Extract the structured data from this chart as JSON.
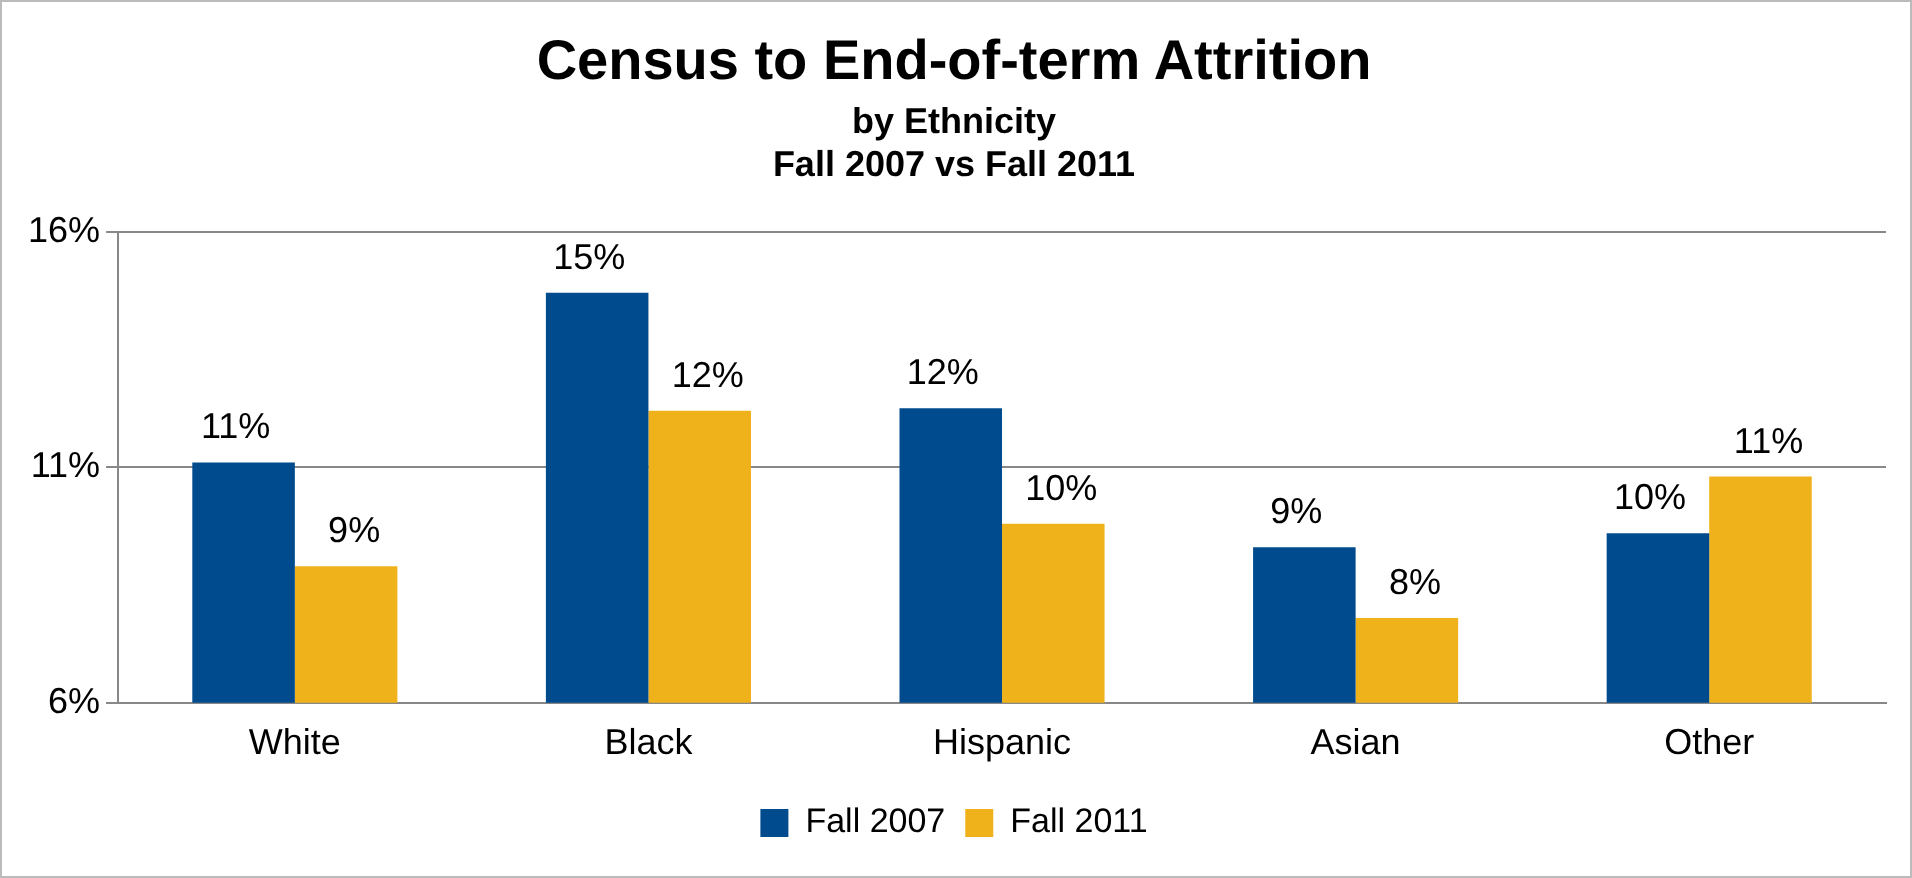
{
  "chart_data": {
    "type": "bar",
    "title": "Census to End-of-term Attrition",
    "subtitle": "by Ethnicity\nFall 2007 vs Fall 2011",
    "categories": [
      "White",
      "Black",
      "Hispanic",
      "Asian",
      "Other"
    ],
    "series": [
      {
        "name": "Fall 2007",
        "color": "#004b8d",
        "values": [
          11.1,
          14.7,
          12.25,
          9.3,
          9.6
        ],
        "value_labels": [
          "11%",
          "15%",
          "12%",
          "9%",
          "10%"
        ]
      },
      {
        "name": "Fall 2011",
        "color": "#f0b21a",
        "values": [
          8.9,
          12.2,
          9.8,
          7.8,
          10.8
        ],
        "value_labels": [
          "9%",
          "12%",
          "10%",
          "8%",
          "11%"
        ]
      }
    ],
    "ylim": [
      6,
      16
    ],
    "yticks": [
      {
        "value": 6,
        "label": "6%"
      },
      {
        "value": 11,
        "label": "11%"
      },
      {
        "value": 16,
        "label": "16%"
      }
    ],
    "grid": "y",
    "legend": "bottom"
  }
}
